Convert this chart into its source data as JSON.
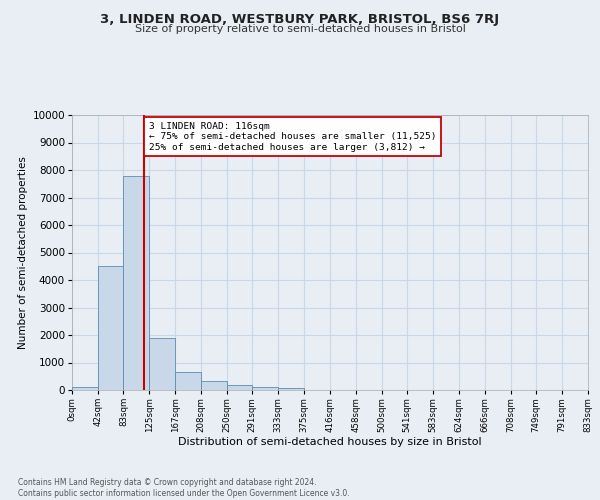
{
  "title": "3, LINDEN ROAD, WESTBURY PARK, BRISTOL, BS6 7RJ",
  "subtitle": "Size of property relative to semi-detached houses in Bristol",
  "xlabel": "Distribution of semi-detached houses by size in Bristol",
  "ylabel": "Number of semi-detached properties",
  "footnote": "Contains HM Land Registry data © Crown copyright and database right 2024.\nContains public sector information licensed under the Open Government Licence v3.0.",
  "property_size": 116,
  "annotation_line1": "3 LINDEN ROAD: 116sqm",
  "annotation_line2": "← 75% of semi-detached houses are smaller (11,525)",
  "annotation_line3": "25% of semi-detached houses are larger (3,812) →",
  "bin_edges": [
    0,
    42,
    83,
    125,
    167,
    208,
    250,
    291,
    333,
    375,
    416,
    458,
    500,
    541,
    583,
    624,
    666,
    708,
    749,
    791,
    833
  ],
  "bin_labels": [
    "0sqm",
    "42sqm",
    "83sqm",
    "125sqm",
    "167sqm",
    "208sqm",
    "250sqm",
    "291sqm",
    "333sqm",
    "375sqm",
    "416sqm",
    "458sqm",
    "500sqm",
    "541sqm",
    "583sqm",
    "624sqm",
    "666sqm",
    "708sqm",
    "749sqm",
    "791sqm",
    "833sqm"
  ],
  "counts": [
    110,
    4500,
    7800,
    1900,
    650,
    320,
    190,
    120,
    80,
    0,
    0,
    0,
    0,
    0,
    0,
    0,
    0,
    0,
    0,
    0
  ],
  "bar_color": "#c8d8e8",
  "bar_edge_color": "#5b8db0",
  "vline_color": "#cc0000",
  "vline_x": 116,
  "box_facecolor": "white",
  "box_edgecolor": "#cc0000",
  "grid_color": "#c8d8e8",
  "ylim": [
    0,
    10000
  ],
  "yticks": [
    0,
    1000,
    2000,
    3000,
    4000,
    5000,
    6000,
    7000,
    8000,
    9000,
    10000
  ],
  "bg_color": "#e8eef4"
}
